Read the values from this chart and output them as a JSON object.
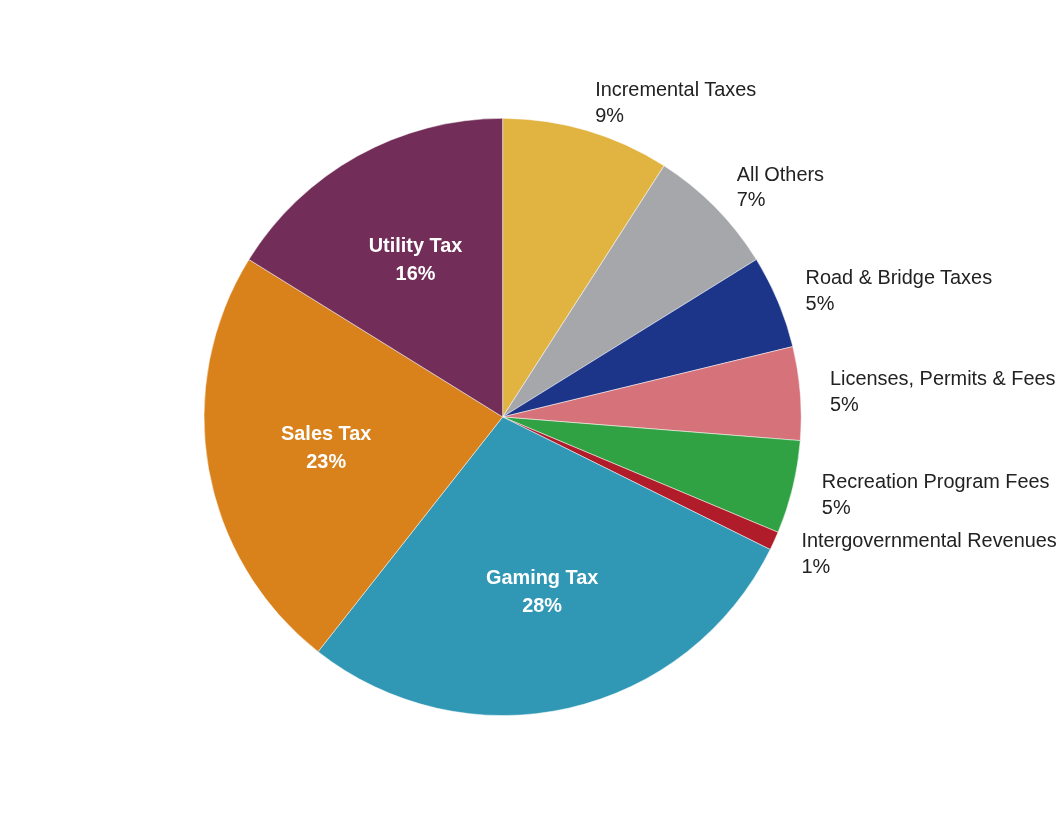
{
  "chart_data": {
    "type": "pie",
    "categories": [
      "Incremental Taxes",
      "All Others",
      "Road & Bridge Taxes",
      "Licenses, Permits & Fees",
      "Recreation Program Fees",
      "Intergovernmental Revenues",
      "Gaming Tax",
      "Sales Tax",
      "Utility Tax"
    ],
    "values": [
      9,
      7,
      5,
      5,
      5,
      1,
      28,
      23,
      16
    ],
    "value_labels": [
      "9%",
      "7%",
      "5%",
      "5%",
      "5%",
      "1%",
      "28%",
      "23%",
      "16%"
    ],
    "colors": [
      "#e1b441",
      "#a6a7aa",
      "#1c3589",
      "#d6727a",
      "#31a244",
      "#b01c2a",
      "#3097b5",
      "#d9811b",
      "#722e58"
    ],
    "legend": false
  }
}
